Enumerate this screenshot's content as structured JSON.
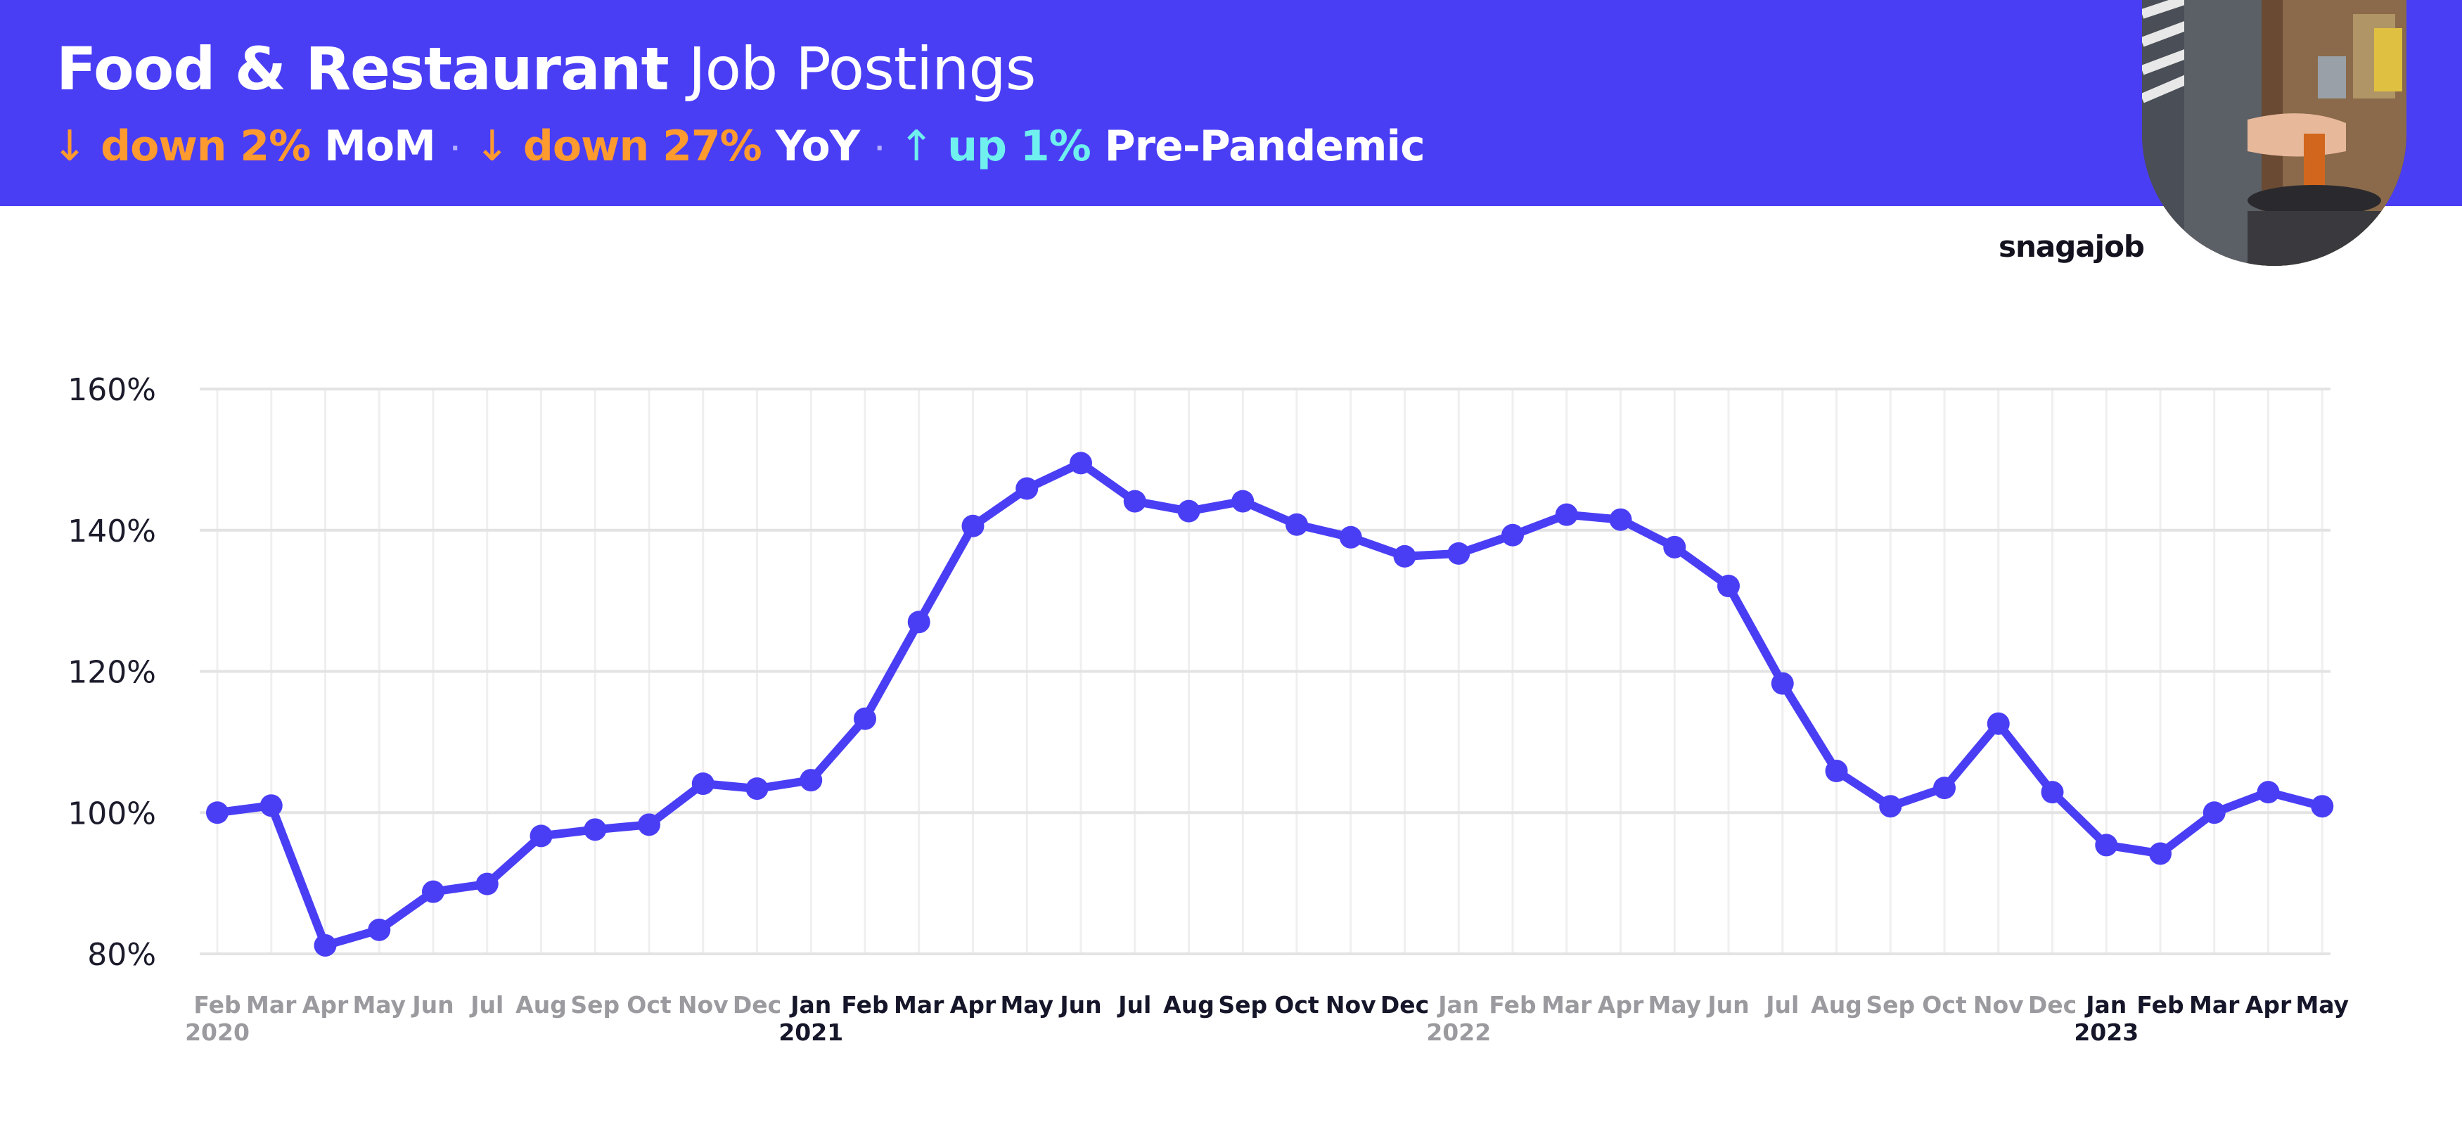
{
  "header": {
    "title_bold": "Food & Restaurant",
    "title_light": "Job Postings",
    "stats": [
      {
        "arrow": "↓",
        "change": "down 2%",
        "label": "MoM",
        "direction": "down"
      },
      {
        "arrow": "↓",
        "change": "down 27%",
        "label": "YoY",
        "direction": "down"
      },
      {
        "arrow": "↑",
        "change": "up 1%",
        "label": "Pre-Pandemic",
        "direction": "up"
      }
    ],
    "separator": "·"
  },
  "brand": "snagajob",
  "colors": {
    "header_bg": "#4a3ef5",
    "line": "#4a3ef5",
    "down": "#ff9a2e",
    "up": "#6ff0ee"
  },
  "chart_data": {
    "type": "line",
    "title": "",
    "xlabel": "",
    "ylabel": "",
    "ylim": [
      80,
      160
    ],
    "yticks": [
      80,
      100,
      120,
      140,
      160
    ],
    "ytick_labels": [
      "80%",
      "100%",
      "120%",
      "140%",
      "160%"
    ],
    "grid": true,
    "x": [
      "Feb 2020",
      "Mar 2020",
      "Apr 2020",
      "May 2020",
      "Jun 2020",
      "Jul 2020",
      "Aug 2020",
      "Sep 2020",
      "Oct 2020",
      "Nov 2020",
      "Dec 2020",
      "Jan 2021",
      "Feb 2021",
      "Mar 2021",
      "Apr 2021",
      "May 2021",
      "Jun 2021",
      "Jul 2021",
      "Aug 2021",
      "Sep 2021",
      "Oct 2021",
      "Nov 2021",
      "Dec 2021",
      "Jan 2022",
      "Feb 2022",
      "Mar 2022",
      "Apr 2022",
      "May 2022",
      "Jun 2022",
      "Jul 2022",
      "Aug 2022",
      "Sep 2022",
      "Oct 2022",
      "Nov 2022",
      "Dec 2022",
      "Jan 2023",
      "Feb 2023",
      "Mar 2023",
      "Apr 2023",
      "May 2023"
    ],
    "x_month_labels": [
      "Feb",
      "Mar",
      "Apr",
      "May",
      "Jun",
      "Jul",
      "Aug",
      "Sep",
      "Oct",
      "Nov",
      "Dec",
      "Jan",
      "Feb",
      "Mar",
      "Apr",
      "May",
      "Jun",
      "Jul",
      "Aug",
      "Sep",
      "Oct",
      "Nov",
      "Dec",
      "Jan",
      "Feb",
      "Mar",
      "Apr",
      "May",
      "Jun",
      "Jul",
      "Aug",
      "Sep",
      "Oct",
      "Nov",
      "Dec",
      "Jan",
      "Feb",
      "Mar",
      "Apr",
      "May"
    ],
    "x_month_dark": [
      false,
      false,
      false,
      false,
      false,
      false,
      false,
      false,
      false,
      false,
      false,
      true,
      true,
      true,
      true,
      true,
      true,
      true,
      true,
      true,
      true,
      true,
      true,
      false,
      false,
      false,
      false,
      false,
      false,
      false,
      false,
      false,
      false,
      false,
      false,
      true,
      true,
      true,
      true,
      true
    ],
    "x_year_labels": [
      {
        "index": 0,
        "label": "2020",
        "dark": false
      },
      {
        "index": 11,
        "label": "2021",
        "dark": true
      },
      {
        "index": 23,
        "label": "2022",
        "dark": false
      },
      {
        "index": 35,
        "label": "2023",
        "dark": true
      }
    ],
    "series": [
      {
        "values": [
          100.0,
          101.0,
          81.2,
          83.4,
          88.8,
          89.9,
          96.7,
          97.6,
          98.3,
          104.1,
          103.4,
          104.6,
          113.3,
          127.0,
          140.6,
          145.9,
          149.5,
          144.1,
          142.7,
          144.1,
          140.8,
          139.0,
          136.3,
          136.7,
          139.3,
          142.2,
          141.5,
          137.6,
          132.1,
          118.3,
          105.9,
          100.9,
          103.5,
          112.6,
          102.9,
          95.4,
          94.2,
          100.0,
          102.9,
          100.9
        ]
      }
    ]
  }
}
